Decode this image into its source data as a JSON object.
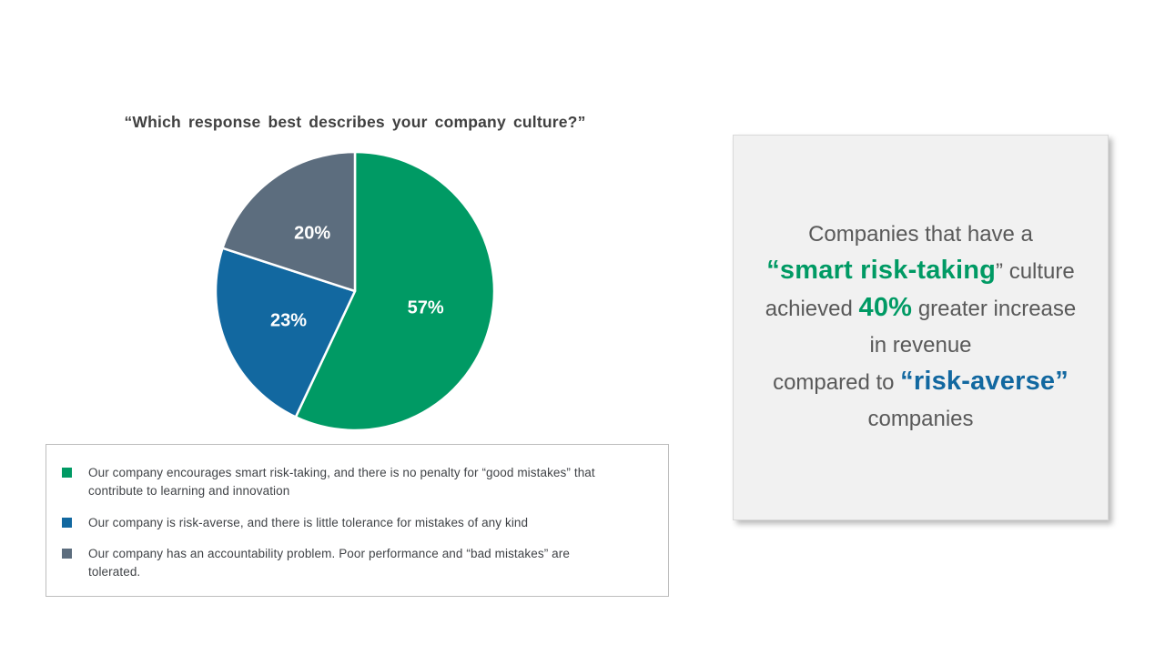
{
  "title": "“Which response best describes your company culture?”",
  "chart_data": {
    "type": "pie",
    "title": "“Which response best describes your company culture?”",
    "unit": "%",
    "start_angle_deg": 0,
    "direction": "clockwise",
    "legend_position": "bottom",
    "data_labels": "inside",
    "slices": [
      {
        "label": "Our company encourages smart risk-taking, and there is no penalty for “good mistakes” that contribute to learning and innovation",
        "value": 57,
        "data_label": "57%",
        "color": "#009A64"
      },
      {
        "label": "Our company is risk-averse, and there is little tolerance for mistakes of any kind",
        "value": 23,
        "data_label": "23%",
        "color": "#1268A0"
      },
      {
        "label": "Our company has an accountability problem. Poor performance and “bad mistakes” are tolerated.",
        "value": 20,
        "data_label": "20%",
        "color": "#5C6D7E"
      }
    ]
  },
  "callout": {
    "lines": [
      [
        {
          "t": "Companies that have a",
          "s": "plain"
        }
      ],
      [
        {
          "t": "“smart risk-taking",
          "s": "green"
        },
        {
          "t": "” culture",
          "s": "plain"
        }
      ],
      [
        {
          "t": "achieved ",
          "s": "plain"
        },
        {
          "t": "40%",
          "s": "green"
        },
        {
          "t": " greater increase",
          "s": "plain"
        }
      ],
      [
        {
          "t": "in revenue",
          "s": "plain"
        }
      ],
      [
        {
          "t": "compared to ",
          "s": "plain"
        },
        {
          "t": "“risk-averse”",
          "s": "blue"
        }
      ],
      [
        {
          "t": "companies",
          "s": "plain"
        }
      ]
    ]
  },
  "colors": {
    "green": "#009A64",
    "blue": "#1268A0",
    "gray": "#5C6D7E",
    "title_text": "#404040",
    "legend_text": "#404347",
    "callout_text": "#595959",
    "callout_bg": "#F1F1F1",
    "pie_label_text": "#FFFFFF",
    "slice_separator": "#FFFFFF"
  }
}
